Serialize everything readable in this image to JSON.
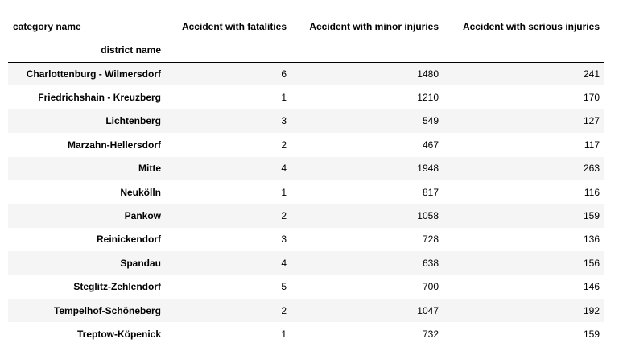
{
  "table": {
    "header_corner": "category name",
    "index_name": "district name",
    "columns": [
      "Accident with fatalities",
      "Accident with minor injuries",
      "Accident with serious injuries"
    ],
    "rows": [
      {
        "district": "Charlottenburg - Wilmersdorf",
        "values": [
          "6",
          "1480",
          "241"
        ]
      },
      {
        "district": "Friedrichshain - Kreuzberg",
        "values": [
          "1",
          "1210",
          "170"
        ]
      },
      {
        "district": "Lichtenberg",
        "values": [
          "3",
          "549",
          "127"
        ]
      },
      {
        "district": "Marzahn-Hellersdorf",
        "values": [
          "2",
          "467",
          "117"
        ]
      },
      {
        "district": "Mitte",
        "values": [
          "4",
          "1948",
          "263"
        ]
      },
      {
        "district": "Neukölln",
        "values": [
          "1",
          "817",
          "116"
        ]
      },
      {
        "district": "Pankow",
        "values": [
          "2",
          "1058",
          "159"
        ]
      },
      {
        "district": "Reinickendorf",
        "values": [
          "3",
          "728",
          "136"
        ]
      },
      {
        "district": "Spandau",
        "values": [
          "4",
          "638",
          "156"
        ]
      },
      {
        "district": "Steglitz-Zehlendorf",
        "values": [
          "5",
          "700",
          "146"
        ]
      },
      {
        "district": "Tempelhof-Schöneberg",
        "values": [
          "2",
          "1047",
          "192"
        ]
      },
      {
        "district": "Treptow-Köpenick",
        "values": [
          "1",
          "732",
          "159"
        ]
      }
    ]
  }
}
